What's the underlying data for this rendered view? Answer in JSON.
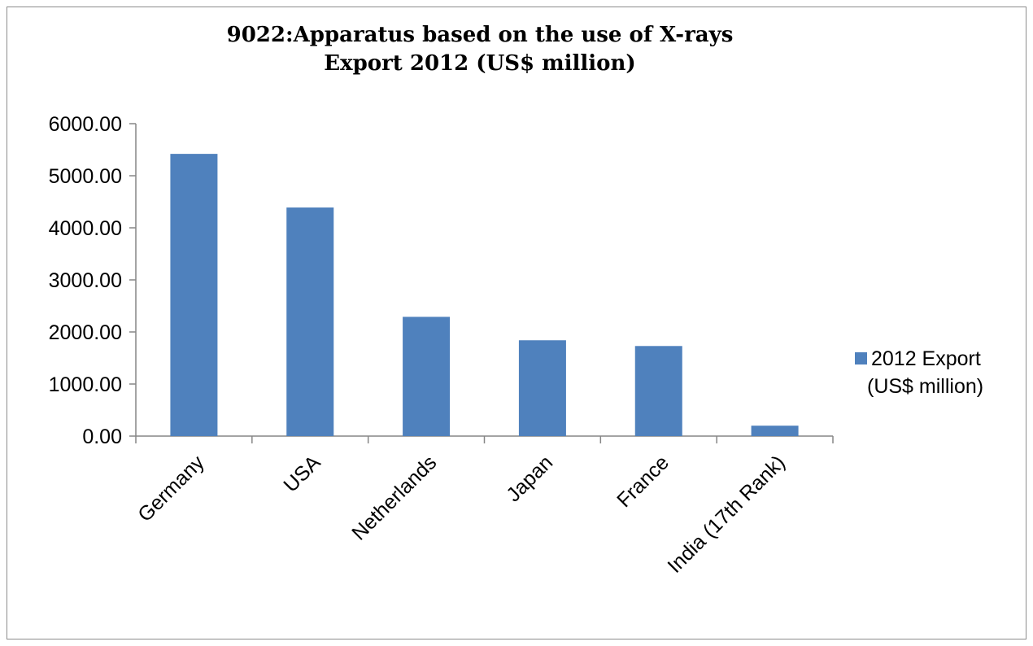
{
  "chart_data": {
    "type": "bar",
    "title": "9022:Apparatus based on the use of X-rays",
    "subtitle": "Export 2012 (US$ million)",
    "xlabel": "",
    "ylabel": "",
    "categories": [
      "Germany",
      "USA",
      "Netherlands",
      "Japan",
      "France",
      "India (17th Rank)"
    ],
    "series": [
      {
        "name": "2012 Export (US$ million)",
        "legend_lines": [
          "2012 Export",
          "(US$ million)"
        ],
        "values": [
          5420,
          4390,
          2290,
          1840,
          1730,
          200
        ],
        "color": "#4f81bd"
      }
    ],
    "ylim": [
      0,
      6000
    ],
    "yticks": [
      0,
      1000,
      2000,
      3000,
      4000,
      5000,
      6000
    ],
    "ytick_labels": [
      "0.00",
      "1000.00",
      "2000.00",
      "3000.00",
      "4000.00",
      "5000.00",
      "6000.00"
    ],
    "grid": false,
    "legend_position": "right"
  }
}
